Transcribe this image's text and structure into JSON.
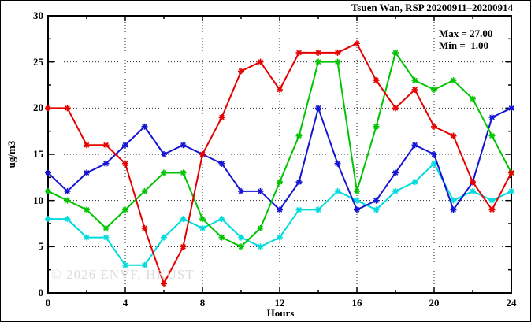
{
  "header": {
    "title": "Tsuen Wan, RSP 20200911–20200914"
  },
  "stats_box": {
    "max_label": "Max = 27.00",
    "min_label": "Min =  1.00"
  },
  "watermark": {
    "text": "© 2026 ENVF, HKUST",
    "color": "#dcdcdc"
  },
  "chart_data": {
    "type": "line",
    "title": "Tsuen Wan, RSP 20200911–20200914",
    "xlabel": "Hours",
    "ylabel": "ug/m3",
    "xlim": [
      0,
      24
    ],
    "ylim": [
      0,
      30
    ],
    "x_major_ticks": [
      0,
      4,
      8,
      12,
      16,
      20,
      24
    ],
    "x_minor_tick_step": 2,
    "y_major_ticks": [
      0,
      5,
      10,
      15,
      20,
      25,
      30
    ],
    "y_minor_tick_step": 2.5,
    "grid_x_lines": [
      4,
      8,
      12,
      16,
      20
    ],
    "grid_y_lines": [
      5,
      10,
      15,
      20,
      25
    ],
    "grid": true,
    "legend_position": "none",
    "max": 27.0,
    "min": 1.0,
    "marker": "asterisk",
    "x": [
      0,
      1,
      2,
      3,
      4,
      5,
      6,
      7,
      8,
      9,
      10,
      11,
      12,
      13,
      14,
      15,
      16,
      17,
      18,
      19,
      20,
      21,
      22,
      23,
      24
    ],
    "series": [
      {
        "name": "series-red",
        "color": "#e60000",
        "values": [
          20,
          20,
          16,
          16,
          14,
          7,
          1,
          5,
          15,
          19,
          24,
          25,
          22,
          26,
          26,
          26,
          27,
          23,
          20,
          22,
          18,
          17,
          12,
          9,
          13
        ]
      },
      {
        "name": "series-green",
        "color": "#00c400",
        "values": [
          11,
          10,
          9,
          7,
          9,
          11,
          13,
          13,
          8,
          6,
          5,
          7,
          12,
          17,
          25,
          25,
          11,
          18,
          26,
          23,
          22,
          23,
          21,
          17,
          13
        ]
      },
      {
        "name": "series-blue",
        "color": "#1414d2",
        "values": [
          13,
          11,
          13,
          14,
          16,
          18,
          15,
          16,
          15,
          14,
          11,
          11,
          9,
          12,
          20,
          14,
          9,
          10,
          13,
          16,
          15,
          9,
          12,
          19,
          20
        ]
      },
      {
        "name": "series-cyan",
        "color": "#00dcdc",
        "values": [
          8,
          8,
          6,
          6,
          3,
          3,
          6,
          8,
          7,
          8,
          6,
          5,
          6,
          9,
          9,
          11,
          10,
          9,
          11,
          12,
          14,
          10,
          11,
          10,
          11
        ]
      }
    ]
  }
}
